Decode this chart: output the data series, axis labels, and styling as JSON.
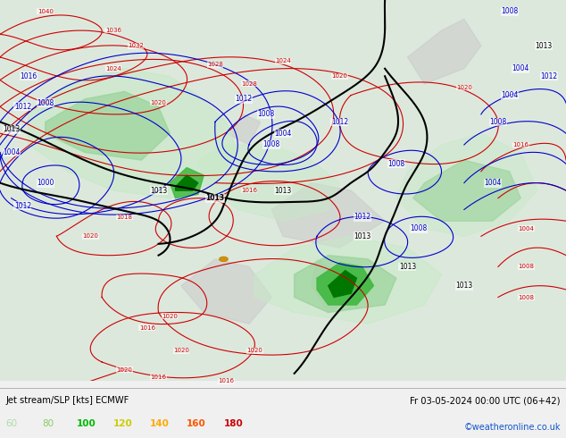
{
  "title_left": "Jet stream/SLP [kts] ECMWF",
  "title_right": "Fr 03-05-2024 00:00 UTC (06+42)",
  "credit": "©weatheronline.co.uk",
  "legend_values": [
    60,
    80,
    100,
    120,
    140,
    160,
    180
  ],
  "legend_colors": [
    "#aaddaa",
    "#88cc66",
    "#00bb00",
    "#cccc00",
    "#ffaa00",
    "#ff5500",
    "#cc0000"
  ],
  "bg_color": "#f0f0f0",
  "map_bg": "#e8e8e8",
  "ocean_color": "#e0ede0",
  "land_color": "#cccccc",
  "jet_60": "#c8e8c8",
  "jet_80": "#90d090",
  "jet_100": "#40b840",
  "jet_120": "#c8c800",
  "jet_140": "#e08000",
  "jet_160": "#e03000",
  "jet_180": "#a00000",
  "isobar_red": "#cc0000",
  "isobar_blue": "#0000cc",
  "isobar_black": "#000000",
  "figsize": [
    6.34,
    4.9
  ],
  "dpi": 100
}
